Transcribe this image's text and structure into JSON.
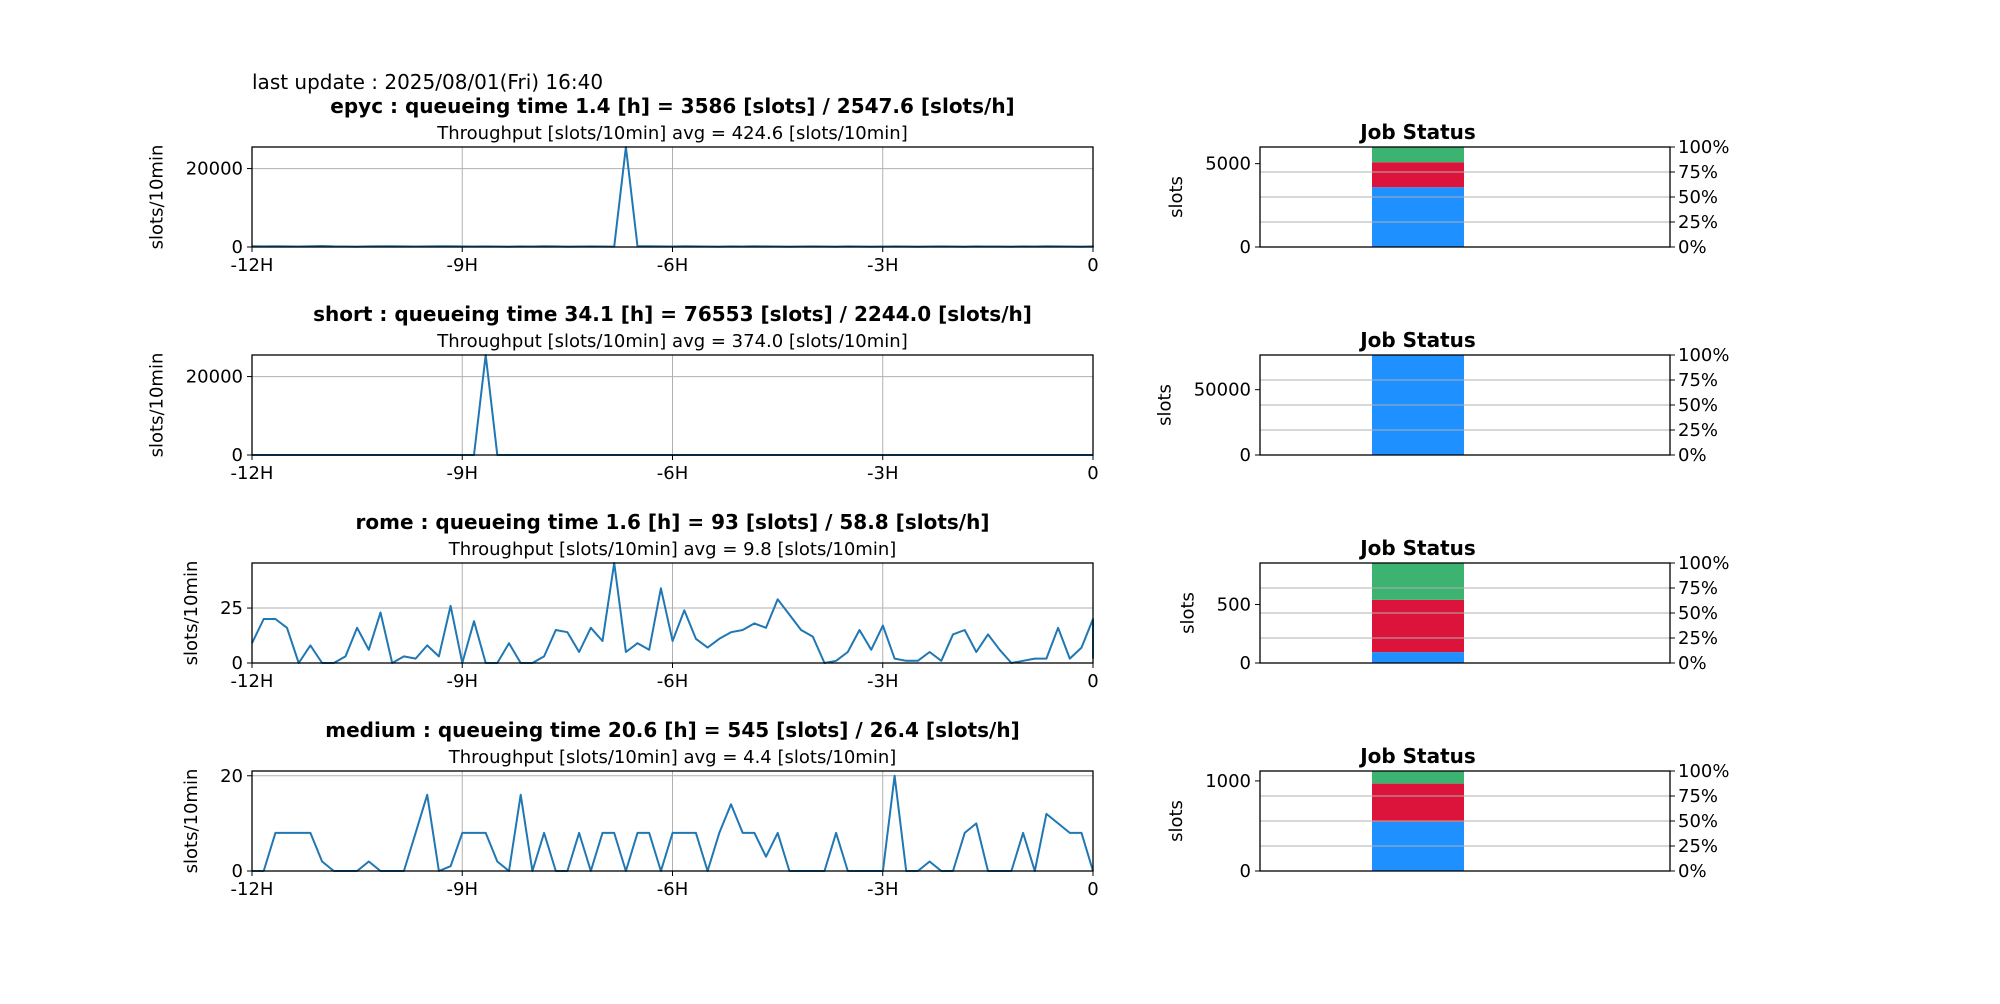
{
  "last_update": "last update : 2025/08/01(Fri) 16:40",
  "colors": {
    "line": "#1f77b4",
    "running": "#1e90ff",
    "queued": "#dc143c",
    "other": "#3cb371",
    "grid": "#b0b0b0"
  },
  "chart_data": [
    {
      "type": "line",
      "queue": "epyc",
      "title": "epyc : queueing time 1.4 [h] = 3586 [slots] / 2547.6 [slots/h]",
      "subtitle": "Throughput [slots/10min] avg = 424.6 [slots/10min]",
      "ylabel": "slots/10min",
      "ylim": [
        0,
        25500
      ],
      "yticks": [
        0,
        20000
      ],
      "xticks": [
        -12,
        -9,
        -6,
        -3,
        0
      ],
      "xtick_labels": [
        "-12H",
        "-9H",
        "-6H",
        "-3H",
        "0"
      ],
      "grid": true,
      "x_step_hours": 0.1667,
      "values": [
        200,
        150,
        200,
        150,
        120,
        200,
        250,
        150,
        130,
        100,
        150,
        180,
        200,
        150,
        120,
        150,
        200,
        180,
        160,
        140,
        150,
        120,
        100,
        150,
        130,
        200,
        150,
        100,
        120,
        150,
        130,
        110,
        25500,
        200,
        180,
        150,
        130,
        200,
        150,
        120,
        100,
        150,
        130,
        200,
        150,
        120,
        100,
        130,
        150,
        120,
        100,
        150,
        120,
        100,
        130,
        150,
        120,
        100,
        130,
        150,
        120,
        100,
        150,
        130,
        120,
        100,
        150,
        130,
        200,
        150,
        120,
        100,
        150,
        130,
        120,
        100,
        130,
        150,
        120,
        100,
        150,
        130,
        120,
        100,
        150,
        130,
        200
      ]
    },
    {
      "type": "line",
      "queue": "short",
      "title": "short : queueing time 34.1 [h] = 76553 [slots] / 2244.0 [slots/h]",
      "subtitle": "Throughput [slots/10min] avg = 374.0 [slots/10min]",
      "ylabel": "slots/10min",
      "ylim": [
        0,
        25500
      ],
      "yticks": [
        0,
        20000
      ],
      "xticks": [
        -12,
        -9,
        -6,
        -3,
        0
      ],
      "xtick_labels": [
        "-12H",
        "-9H",
        "-6H",
        "-3H",
        "0"
      ],
      "grid": true,
      "x_step_hours": 0.1667,
      "values": [
        0,
        0,
        0,
        0,
        0,
        0,
        0,
        0,
        0,
        0,
        0,
        0,
        0,
        0,
        0,
        0,
        0,
        0,
        0,
        0,
        25500,
        0,
        0,
        0,
        0,
        0,
        0,
        0,
        0,
        0,
        0,
        0,
        0,
        0,
        0,
        0,
        0,
        0,
        0,
        0,
        0,
        0,
        0,
        0,
        0,
        0,
        0,
        0,
        0,
        0,
        0,
        0,
        0,
        0,
        0,
        0,
        0,
        0,
        0,
        0,
        0,
        0,
        0,
        0,
        0,
        0,
        0,
        0,
        0,
        0,
        0,
        0,
        0
      ]
    },
    {
      "type": "line",
      "queue": "rome",
      "title": "rome : queueing time 1.6 [h] = 93 [slots] / 58.8 [slots/h]",
      "subtitle": "Throughput [slots/10min] avg = 9.8 [slots/10min]",
      "ylabel": "slots/10min",
      "ylim": [
        0,
        45.5
      ],
      "yticks": [
        0,
        25
      ],
      "xticks": [
        -12,
        -9,
        -6,
        -3,
        0
      ],
      "xtick_labels": [
        "-12H",
        "-9H",
        "-6H",
        "-3H",
        "0"
      ],
      "grid": true,
      "x_step_hours": 0.1667,
      "values": [
        9,
        20,
        20,
        16,
        0,
        8,
        0,
        0,
        3,
        16,
        6,
        23,
        0,
        3,
        2,
        8,
        3,
        26,
        0,
        19,
        0,
        0,
        9,
        0,
        0,
        3,
        15,
        14,
        5,
        16,
        10,
        45.5,
        5,
        9,
        6,
        34,
        10,
        24,
        11,
        7,
        11,
        14,
        15,
        18,
        16,
        29,
        22,
        15,
        12,
        0,
        1,
        5,
        15,
        6,
        17,
        2,
        1,
        1,
        5,
        1,
        13,
        15,
        5,
        13,
        6,
        0,
        1,
        2,
        2,
        16,
        2,
        7,
        20,
        2
      ]
    },
    {
      "type": "line",
      "queue": "medium",
      "title": "medium : queueing time 20.6 [h] = 545 [slots] / 26.4 [slots/h]",
      "subtitle": "Throughput [slots/10min] avg = 4.4 [slots/10min]",
      "ylabel": "slots/10min",
      "ylim": [
        0,
        21
      ],
      "yticks": [
        0,
        20
      ],
      "xticks": [
        -12,
        -9,
        -6,
        -3,
        0
      ],
      "xtick_labels": [
        "-12H",
        "-9H",
        "-6H",
        "-3H",
        "0"
      ],
      "grid": true,
      "x_step_hours": 0.1667,
      "values": [
        0,
        0,
        8,
        8,
        8,
        8,
        2,
        0,
        0,
        0,
        2,
        0,
        0,
        0,
        8,
        16,
        0,
        1,
        8,
        8,
        8,
        2,
        0,
        16,
        0,
        8,
        0,
        0,
        8,
        0,
        8,
        8,
        0,
        8,
        8,
        0,
        8,
        8,
        8,
        0,
        8,
        14,
        8,
        8,
        3,
        8,
        0,
        0,
        0,
        0,
        8,
        0,
        0,
        0,
        0,
        20,
        0,
        0,
        2,
        0,
        0,
        8,
        10,
        0,
        0,
        0,
        8,
        0,
        12,
        10,
        8,
        8,
        0
      ]
    },
    {
      "type": "bar",
      "queue": "epyc",
      "title": "Job Status",
      "ylabel": "slots",
      "ylim": [
        0,
        6000
      ],
      "yticks": [
        0,
        5000
      ],
      "right_ticks": [
        "0%",
        "25%",
        "50%",
        "75%",
        "100%"
      ],
      "segments": [
        {
          "status": "running",
          "value": 3586
        },
        {
          "status": "queued",
          "value": 1500
        },
        {
          "status": "other",
          "value": 914
        }
      ]
    },
    {
      "type": "bar",
      "queue": "short",
      "title": "Job Status",
      "ylabel": "slots",
      "ylim": [
        0,
        76553
      ],
      "yticks": [
        0,
        50000
      ],
      "right_ticks": [
        "0%",
        "25%",
        "50%",
        "75%",
        "100%"
      ],
      "segments": [
        {
          "status": "running",
          "value": 76553
        }
      ]
    },
    {
      "type": "bar",
      "queue": "rome",
      "title": "Job Status",
      "ylabel": "slots",
      "ylim": [
        0,
        855
      ],
      "yticks": [
        0,
        500
      ],
      "right_ticks": [
        "0%",
        "25%",
        "50%",
        "75%",
        "100%"
      ],
      "segments": [
        {
          "status": "running",
          "value": 93
        },
        {
          "status": "queued",
          "value": 447
        },
        {
          "status": "other",
          "value": 315
        }
      ]
    },
    {
      "type": "bar",
      "queue": "medium",
      "title": "Job Status",
      "ylabel": "slots",
      "ylim": [
        0,
        1110
      ],
      "yticks": [
        0,
        1000
      ],
      "right_ticks": [
        "0%",
        "25%",
        "50%",
        "75%",
        "100%"
      ],
      "segments": [
        {
          "status": "running",
          "value": 545
        },
        {
          "status": "queued",
          "value": 425
        },
        {
          "status": "other",
          "value": 140
        }
      ]
    }
  ]
}
